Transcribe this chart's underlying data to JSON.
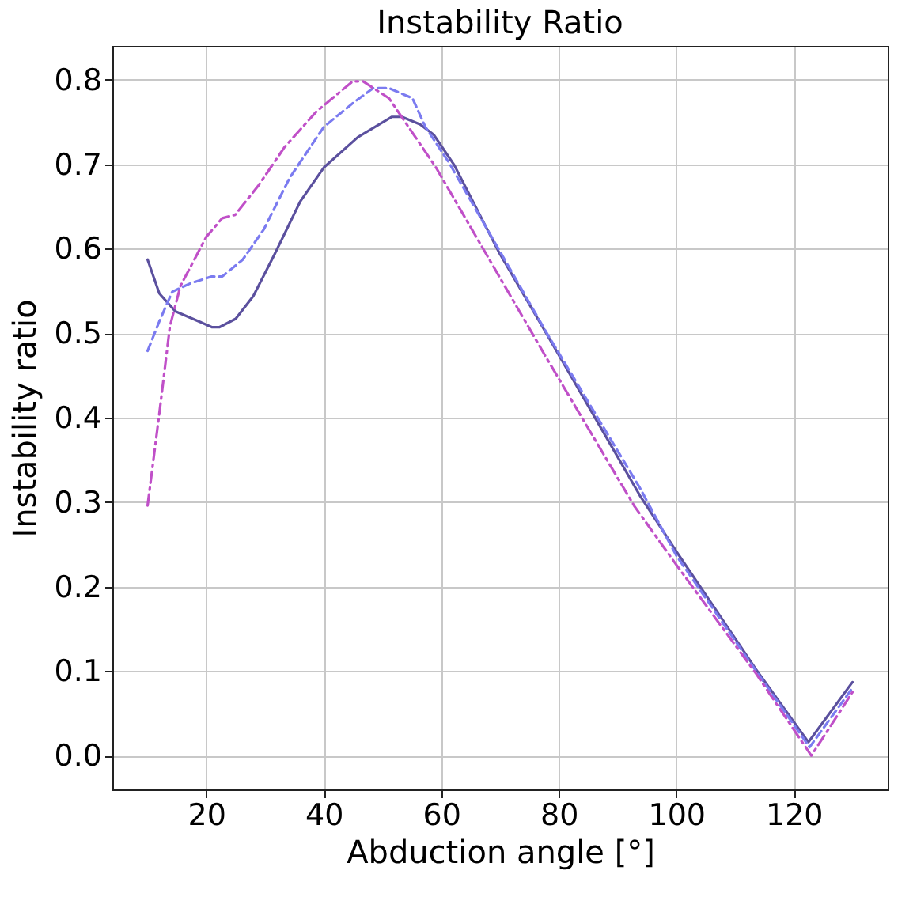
{
  "chart_data": {
    "type": "line",
    "title": "Instability Ratio",
    "xlabel": "Abduction angle [°]",
    "ylabel": "Instability ratio",
    "xlim": [
      4,
      136
    ],
    "xticks": [
      20,
      40,
      60,
      80,
      100,
      120
    ],
    "ylim": [
      -0.04,
      0.84
    ],
    "yticks": [
      {
        "value": 0,
        "label": "0.0"
      },
      {
        "value": 0.1,
        "label": "0.1"
      },
      {
        "value": 0.2,
        "label": "0.2"
      },
      {
        "value": 0.3,
        "label": "0.3"
      },
      {
        "value": 0.4,
        "label": "0.4"
      },
      {
        "value": 0.5,
        "label": "0.5"
      },
      {
        "value": 0.6,
        "label": "0.6"
      },
      {
        "value": 0.7,
        "label": "0.7"
      },
      {
        "value": 0.8,
        "label": "0.8"
      }
    ],
    "grid": true,
    "series": [
      {
        "color": "#5b509e",
        "line_style": "solid",
        "x": [
          10,
          12,
          14.7,
          18.7,
          21,
          22.2,
          25,
          28,
          31.6,
          36,
          40,
          45.8,
          51.6,
          53.3,
          56.4,
          58.7,
          62.2,
          69.8,
          78.2,
          93.8,
          100,
          113.6,
          122.5,
          130
        ],
        "values": [
          0.587,
          0.547,
          0.526,
          0.514,
          0.507,
          0.507,
          0.517,
          0.544,
          0.593,
          0.656,
          0.696,
          0.732,
          0.756,
          0.756,
          0.747,
          0.735,
          0.699,
          0.596,
          0.496,
          0.308,
          0.242,
          0.102,
          0.016,
          0.087
        ]
      },
      {
        "color": "#7b7bf0",
        "line_style": "dashed",
        "x": [
          10,
          12,
          14.2,
          17.3,
          20.9,
          22.7,
          26.2,
          29.8,
          34.2,
          40,
          44.9,
          48.4,
          51.1,
          55.1,
          57.3,
          61.3,
          77.8,
          93.8,
          100,
          113.6,
          122.7,
          130
        ],
        "values": [
          0.479,
          0.514,
          0.549,
          0.559,
          0.567,
          0.567,
          0.587,
          0.623,
          0.684,
          0.744,
          0.772,
          0.79,
          0.79,
          0.778,
          0.744,
          0.702,
          0.502,
          0.317,
          0.237,
          0.1,
          0.01,
          0.08
        ]
      },
      {
        "color": "#c050c8",
        "line_style": "dashdot",
        "x": [
          10,
          12,
          13.8,
          15.6,
          20,
          22.7,
          24.9,
          28.9,
          33.3,
          38.7,
          44.9,
          46.7,
          51.1,
          55.6,
          59.1,
          77.8,
          92.9,
          100,
          113.6,
          123,
          130
        ],
        "values": [
          0.296,
          0.405,
          0.508,
          0.556,
          0.614,
          0.636,
          0.64,
          0.675,
          0.72,
          0.762,
          0.798,
          0.798,
          0.778,
          0.732,
          0.696,
          0.472,
          0.295,
          0.226,
          0.097,
          0.0,
          0.075
        ]
      }
    ]
  }
}
